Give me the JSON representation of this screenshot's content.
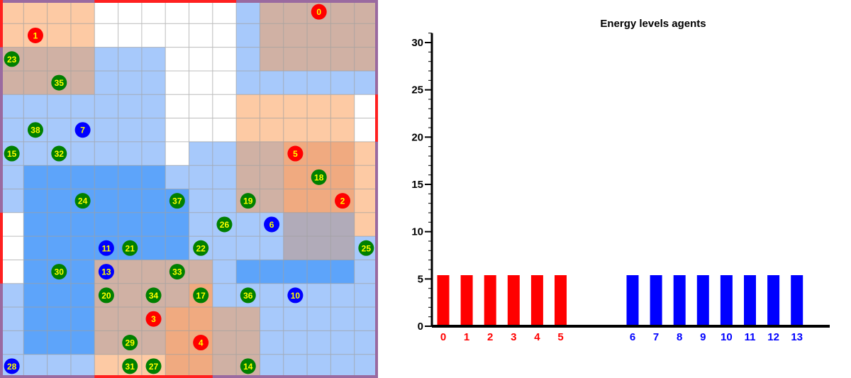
{
  "grid": {
    "cols": 16,
    "rows": 16,
    "colors": {
      "W": "#ffffff",
      "O": "#fdcaa4",
      "B": "#a7c9fb",
      "M": "#5da4fa",
      "T": "#d0b1a4",
      "D": "#f0aa80",
      "S": "#b1abb9",
      "gridline": "#a0a0a0",
      "border_red": "#ff2020",
      "border_purple": "#9a6aa0"
    },
    "cells": [
      "OOOOWWWWWWBTTTTT",
      "OOOOWWWWWWBTTTTT",
      "TTTTBBBWWWBTTTTT",
      "TTTTBBBWWWBBBBBB",
      "BBBBBBBWWWOOOOOW",
      "BBBBBBBWWWOOOOOW",
      "BBBBBBBWBBTTDDDO",
      "BMMMMMMBBBTTDDDO",
      "BMMMMMMMBBTTDDDO",
      "WMMMMMMMBBBBSSSO",
      "WMMMMMMMBBBBSSSB",
      "WMMMTTTTTBMMMMMB",
      "BMMMTTTTDBBBBBBB",
      "BMMMTTTDDTTBBBBB",
      "BMMMTTTDDTTBBBBB",
      "BBBBOOODDTTBBBBB"
    ]
  },
  "agents": [
    {
      "id": "0",
      "team": "red",
      "col": 13,
      "row": 0
    },
    {
      "id": "1",
      "team": "red",
      "col": 1,
      "row": 1
    },
    {
      "id": "23",
      "team": "green",
      "col": 0,
      "row": 2
    },
    {
      "id": "35",
      "team": "green",
      "col": 2,
      "row": 3
    },
    {
      "id": "38",
      "team": "green",
      "col": 1,
      "row": 5
    },
    {
      "id": "7",
      "team": "blue",
      "col": 3,
      "row": 5
    },
    {
      "id": "15",
      "team": "green",
      "col": 0,
      "row": 6
    },
    {
      "id": "32",
      "team": "green",
      "col": 2,
      "row": 6
    },
    {
      "id": "5",
      "team": "red",
      "col": 12,
      "row": 6
    },
    {
      "id": "18",
      "team": "green",
      "col": 13,
      "row": 7
    },
    {
      "id": "24",
      "team": "green",
      "col": 3,
      "row": 8
    },
    {
      "id": "37",
      "team": "green",
      "col": 7,
      "row": 8
    },
    {
      "id": "19",
      "team": "green",
      "col": 10,
      "row": 8
    },
    {
      "id": "2",
      "team": "red",
      "col": 14,
      "row": 8
    },
    {
      "id": "26",
      "team": "green",
      "col": 9,
      "row": 9
    },
    {
      "id": "6",
      "team": "blue",
      "col": 11,
      "row": 9
    },
    {
      "id": "11",
      "team": "blue",
      "col": 4,
      "row": 10
    },
    {
      "id": "21",
      "team": "green",
      "col": 5,
      "row": 10
    },
    {
      "id": "22",
      "team": "green",
      "col": 8,
      "row": 10
    },
    {
      "id": "25",
      "team": "green",
      "col": 15,
      "row": 10
    },
    {
      "id": "30",
      "team": "green",
      "col": 2,
      "row": 11
    },
    {
      "id": "13",
      "team": "blue",
      "col": 4,
      "row": 11
    },
    {
      "id": "33",
      "team": "green",
      "col": 7,
      "row": 11
    },
    {
      "id": "20",
      "team": "green",
      "col": 4,
      "row": 12
    },
    {
      "id": "34",
      "team": "green",
      "col": 6,
      "row": 12
    },
    {
      "id": "17",
      "team": "green",
      "col": 8,
      "row": 12
    },
    {
      "id": "36",
      "team": "green",
      "col": 10,
      "row": 12
    },
    {
      "id": "10",
      "team": "blue",
      "col": 12,
      "row": 12
    },
    {
      "id": "3",
      "team": "red",
      "col": 6,
      "row": 13
    },
    {
      "id": "29",
      "team": "green",
      "col": 5,
      "row": 14
    },
    {
      "id": "4",
      "team": "red",
      "col": 8,
      "row": 14
    },
    {
      "id": "28",
      "team": "blue",
      "col": 0,
      "row": 15
    },
    {
      "id": "31",
      "team": "green",
      "col": 5,
      "row": 15
    },
    {
      "id": "27",
      "team": "green",
      "col": 6,
      "row": 15
    },
    {
      "id": "14",
      "team": "green",
      "col": 10,
      "row": 15
    }
  ],
  "team_colors": {
    "red": "#ff0000",
    "blue": "#0000ff",
    "green": "#008000",
    "label": "#ffff00"
  },
  "chart_data": {
    "type": "bar",
    "title": "Energy levels agents",
    "xlabel": "",
    "ylabel": "",
    "ylim": [
      0,
      31
    ],
    "yticks": [
      0,
      5,
      10,
      15,
      20,
      25,
      30
    ],
    "grid": false,
    "categories": [
      "0",
      "1",
      "2",
      "3",
      "4",
      "5",
      "6",
      "7",
      "8",
      "9",
      "10",
      "11",
      "12",
      "13"
    ],
    "values": [
      5.4,
      5.4,
      5.4,
      5.4,
      5.4,
      5.4,
      5.4,
      5.4,
      5.4,
      5.4,
      5.4,
      5.4,
      5.4,
      5.4
    ],
    "bar_colors": [
      "#ff0000",
      "#ff0000",
      "#ff0000",
      "#ff0000",
      "#ff0000",
      "#ff0000",
      "#0000ff",
      "#0000ff",
      "#0000ff",
      "#0000ff",
      "#0000ff",
      "#0000ff",
      "#0000ff",
      "#0000ff"
    ]
  }
}
